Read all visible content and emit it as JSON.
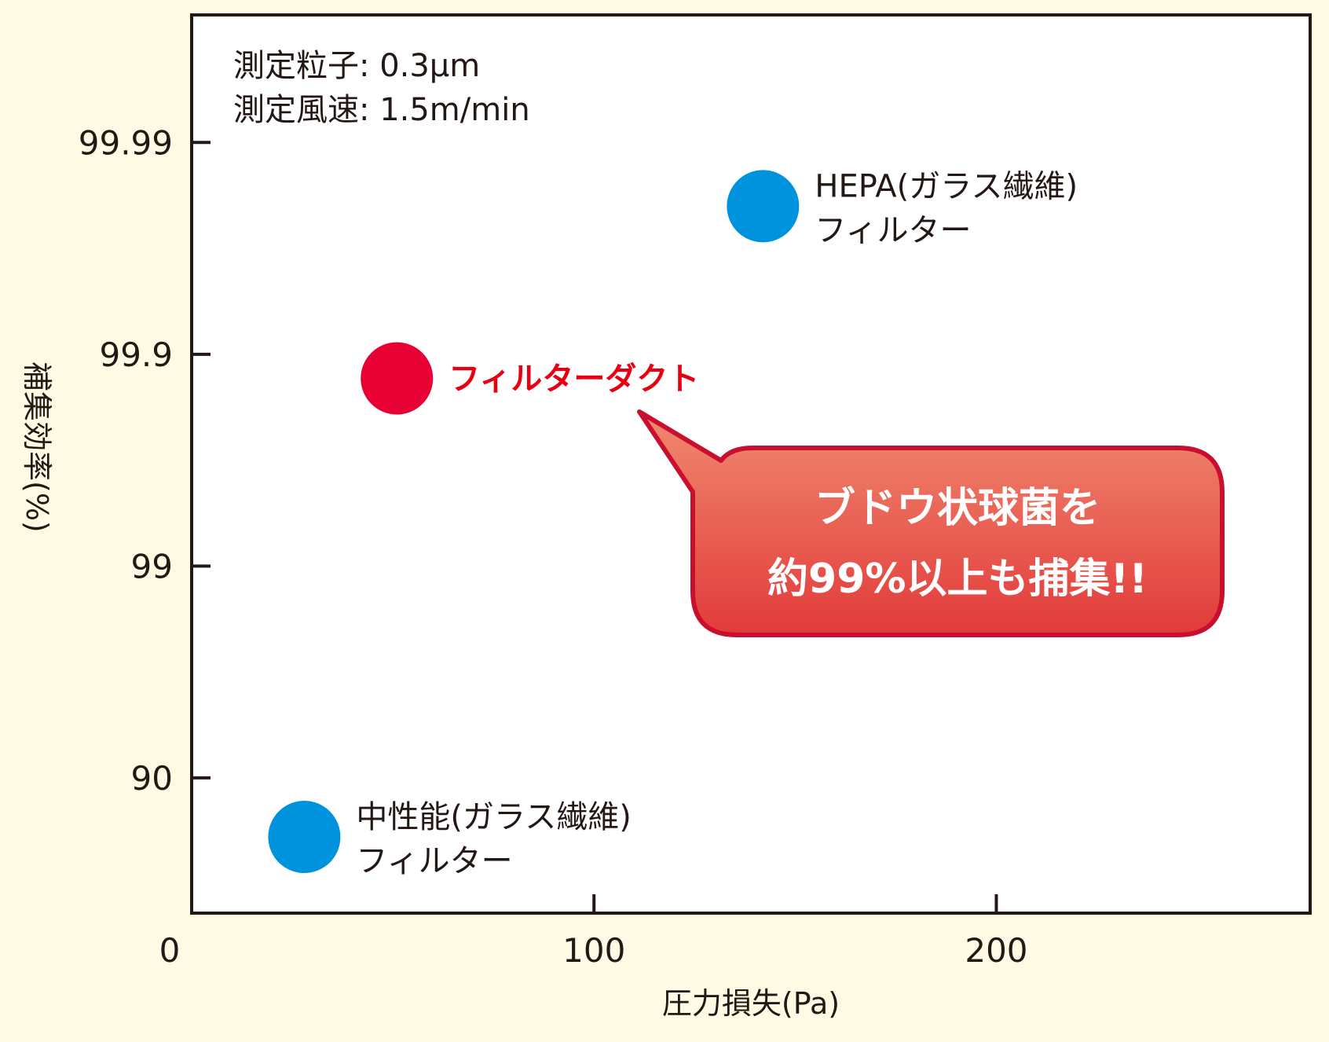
{
  "chart_data": {
    "type": "scatter",
    "x_axis": {
      "label": "圧力損失(Pa)",
      "ticks": [
        0,
        100,
        200
      ],
      "tick_labels": [
        "0",
        "100",
        "200"
      ],
      "range": [
        0,
        278
      ]
    },
    "y_axis": {
      "label": "補集効率(%)",
      "scale": "log-penetration",
      "ticks": [
        90,
        99,
        99.9,
        99.99
      ],
      "tick_labels": [
        "90",
        "99",
        "99.9",
        "99.99"
      ],
      "range": [
        56.5,
        99.9975
      ]
    },
    "grid": false,
    "annotations": {
      "conditions": [
        "測定粒子: 0.3μm",
        "測定風速: 1.5m/min"
      ],
      "callout": [
        "ブドウ状球菌を",
        "約99%以上も捕集!!"
      ]
    },
    "points": [
      {
        "name_lines": [
          "HEPA(ガラス繊維)",
          "フィルター"
        ],
        "x": 142,
        "y": 99.98,
        "color": "#0093dd",
        "highlight": false
      },
      {
        "name_lines": [
          "フィルターダクト"
        ],
        "x": 51,
        "y": 99.87,
        "color": "#e60033",
        "highlight": true
      },
      {
        "name_lines": [
          "中性能(ガラス繊維)",
          "フィルター"
        ],
        "x": 28,
        "y": 81,
        "color": "#0093dd",
        "highlight": false
      }
    ]
  },
  "colors": {
    "background": "#fdfbe3",
    "plot_background": "#ffffff",
    "axis": "#231815",
    "callout_fill": "#e55a4b",
    "callout_stroke": "#c8102e"
  }
}
